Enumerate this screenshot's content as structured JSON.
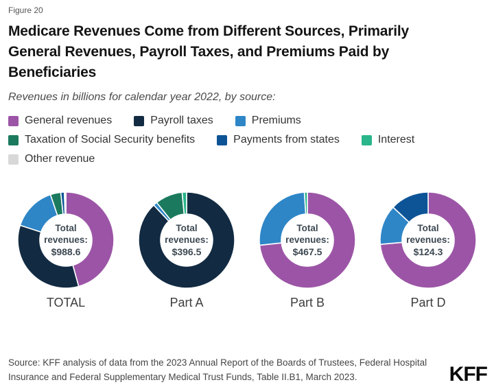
{
  "figure_label": "Figure 20",
  "title": "Medicare Revenues Come from Different Sources, Primarily General Revenues, Payroll Taxes, and Premiums Paid by Beneficiaries",
  "subtitle": "Revenues in billions for calendar year 2022, by source:",
  "legend": {
    "items": [
      {
        "key": "general_revenues",
        "label": "General revenues",
        "color": "#9c55a6",
        "row": 1
      },
      {
        "key": "payroll_taxes",
        "label": "Payroll taxes",
        "color": "#122b42",
        "row": 1
      },
      {
        "key": "premiums",
        "label": "Premiums",
        "color": "#2e86c7",
        "row": 1
      },
      {
        "key": "taxation_ss",
        "label": "Taxation of Social Security benefits",
        "color": "#1b7a5e",
        "row": 2
      },
      {
        "key": "payments_states",
        "label": "Payments from states",
        "color": "#0d5497",
        "row": 2
      },
      {
        "key": "interest",
        "label": "Interest",
        "color": "#2ab58b",
        "row": 2
      },
      {
        "key": "other_revenue",
        "label": "Other revenue",
        "color": "#d8d8d8",
        "row": 3
      }
    ]
  },
  "chart_data": {
    "type": "pie",
    "subtype": "donut",
    "title": "Medicare Revenues Come from Different Sources, Primarily General Revenues, Payroll Taxes, and Premiums Paid by Beneficiaries",
    "unit": "billions of dollars, calendar year 2022",
    "legend_position": "top",
    "center_label": "Total revenues:",
    "categories": [
      "General revenues",
      "Payroll taxes",
      "Premiums",
      "Taxation of Social Security benefits",
      "Payments from states",
      "Interest",
      "Other revenue"
    ],
    "donuts": [
      {
        "label": "TOTAL",
        "total": 988.6,
        "total_display": "$988.6",
        "segments": [
          {
            "key": "general_revenues",
            "name": "General revenues",
            "share_pct": 45.7
          },
          {
            "key": "payroll_taxes",
            "name": "Payroll taxes",
            "share_pct": 34.3
          },
          {
            "key": "premiums",
            "name": "Premiums",
            "share_pct": 14.8
          },
          {
            "key": "taxation_ss",
            "name": "Taxation of Social Security benefits",
            "share_pct": 3.5
          },
          {
            "key": "payments_states",
            "name": "Payments from states",
            "share_pct": 1.2
          },
          {
            "key": "interest",
            "name": "Interest",
            "share_pct": 0.3
          },
          {
            "key": "other_revenue",
            "name": "Other revenue",
            "share_pct": 0.2
          }
        ]
      },
      {
        "label": "Part A",
        "total": 396.5,
        "total_display": "$396.5",
        "segments": [
          {
            "key": "payroll_taxes",
            "name": "Payroll taxes",
            "share_pct": 88.0
          },
          {
            "key": "premiums",
            "name": "Premiums",
            "share_pct": 1.3
          },
          {
            "key": "taxation_ss",
            "name": "Taxation of Social Security benefits",
            "share_pct": 9.2
          },
          {
            "key": "interest",
            "name": "Interest",
            "share_pct": 1.5
          }
        ]
      },
      {
        "label": "Part B",
        "total": 467.5,
        "total_display": "$467.5",
        "segments": [
          {
            "key": "general_revenues",
            "name": "General revenues",
            "share_pct": 73.3
          },
          {
            "key": "premiums",
            "name": "Premiums",
            "share_pct": 25.7
          },
          {
            "key": "interest",
            "name": "Interest",
            "share_pct": 1.0
          }
        ]
      },
      {
        "label": "Part D",
        "total": 124.3,
        "total_display": "$124.3",
        "segments": [
          {
            "key": "general_revenues",
            "name": "General revenues",
            "share_pct": 73.6
          },
          {
            "key": "premiums",
            "name": "Premiums",
            "share_pct": 13.4
          },
          {
            "key": "payments_states",
            "name": "Payments from states",
            "share_pct": 13.0
          }
        ]
      }
    ]
  },
  "source": "Source: KFF analysis of data from the 2023 Annual Report of the Boards of Trustees, Federal Hospital Insurance and Federal Supplementary Medical Trust Funds, Table II.B1, March 2023.",
  "logo": "KFF"
}
